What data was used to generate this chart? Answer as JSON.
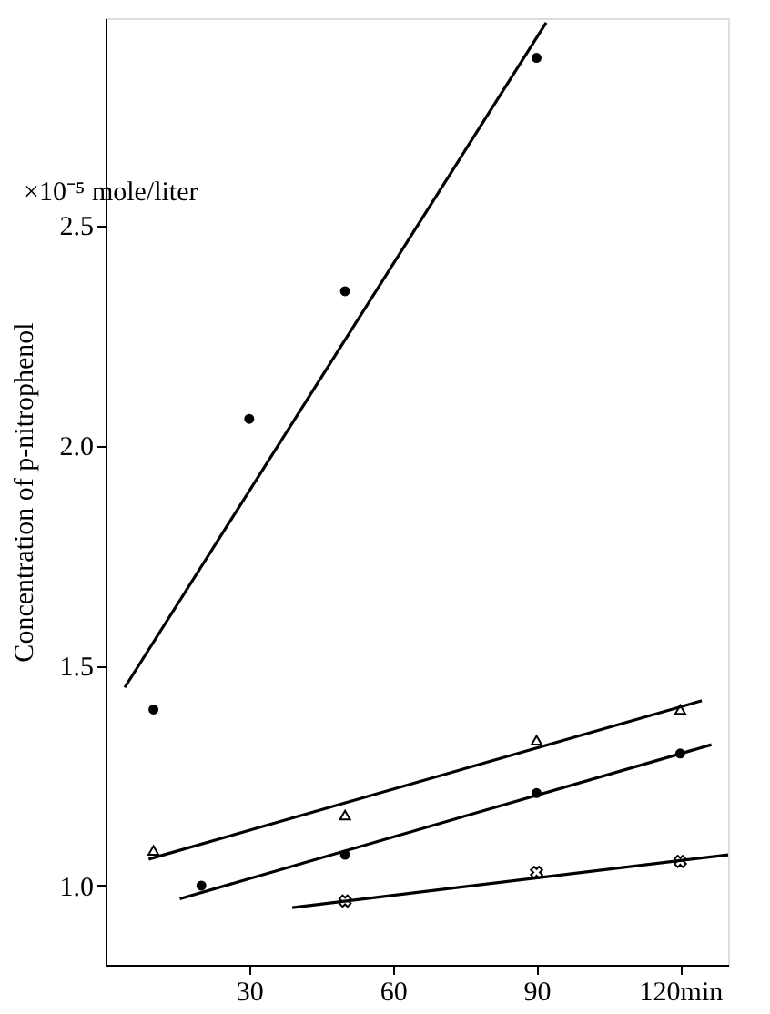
{
  "chart_data": {
    "type": "scatter",
    "ylabel": "Concentration of p-nitrophenol",
    "annotations": [
      "×10⁻⁵ mole/liter"
    ],
    "xlim": [
      0,
      130
    ],
    "xticks": [
      30,
      60,
      90,
      {
        "value": 120,
        "label": "120min"
      }
    ],
    "ylim": [
      0.82,
      2.97
    ],
    "yticks": [
      {
        "value": 1,
        "label": "1.0"
      },
      1.5,
      {
        "value": 2,
        "label": "2.0"
      },
      2.5
    ],
    "grid": false,
    "series": [
      {
        "marker": "circle",
        "color": "#000000",
        "x": [
          10,
          30,
          50,
          90
        ],
        "values": [
          1.4,
          2.06,
          2.35,
          2.88
        ]
      },
      {
        "marker": "triangle",
        "color": "#000000",
        "x": [
          10,
          50,
          90,
          120
        ],
        "values": [
          1.08,
          1.16,
          1.33,
          1.4
        ]
      },
      {
        "marker": "circle",
        "color": "#000000",
        "x": [
          20,
          50,
          90,
          120
        ],
        "values": [
          1.0,
          1.07,
          1.21,
          1.3
        ]
      },
      {
        "marker": "cross",
        "color": "#000000",
        "x": [
          50,
          90,
          120
        ],
        "values": [
          0.965,
          1.03,
          1.055
        ]
      },
      {
        "type": "line",
        "line_style": "solid",
        "color": "#000000",
        "x": [
          4,
          92
        ],
        "values": [
          1.45,
          2.96
        ]
      },
      {
        "type": "line",
        "line_style": "solid",
        "color": "#000000",
        "x": [
          9,
          124.5
        ],
        "values": [
          1.06,
          1.42
        ]
      },
      {
        "type": "line",
        "line_style": "solid",
        "color": "#000000",
        "x": [
          15.5,
          126.5
        ],
        "values": [
          0.97,
          1.32
        ]
      },
      {
        "type": "line",
        "line_style": "solid",
        "color": "#000000",
        "x": [
          39,
          130
        ],
        "values": [
          0.95,
          1.07
        ]
      }
    ]
  }
}
